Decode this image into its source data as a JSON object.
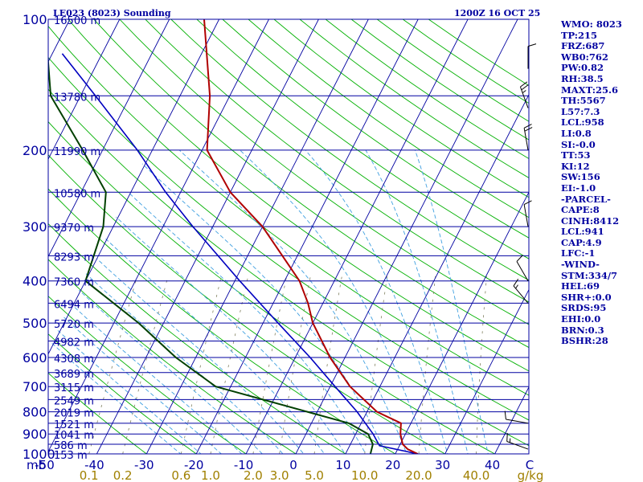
{
  "header": {
    "station": "LE023 (8023) Sounding",
    "time": "1200Z 16 OCT 25"
  },
  "colors": {
    "background": "#ffffff",
    "isobar": "#0000a0",
    "isotherm": "#0000a0",
    "dry_adiabat": "#00b000",
    "moist_adiabat": "#40a0e0",
    "mixing_ratio": "#808060",
    "temperature": "#b00000",
    "dewpoint": "#004000",
    "parcel": "#0000c0",
    "text": "#0000a0",
    "wind": "#000000",
    "mr_label": "#a08000"
  },
  "stats": [
    "WMO: 8023",
    "TP:215",
    "FRZ:687",
    "WB0:762",
    "PW:0.82",
    "RH:38.5",
    "MAXT:25.6",
    "TH:5567",
    "L57:7.3",
    "LCL:958",
    "LI:0.8",
    "SI:-0.0",
    "TT:53",
    "KI:12",
    "SW:156",
    "EI:-1.0",
    "-PARCEL-",
    "CAPE:8",
    "CINH:8412",
    "LCL:941",
    "CAP:4.9",
    "LFC:-1",
    "-WIND-",
    "STM:334/7",
    "HEL:69",
    "SHR+:0.0",
    "SRDS:95",
    "EHI:0.0",
    "BRN:0.3",
    "BSHR:28"
  ],
  "chart_data": {
    "type": "skew-t",
    "title": "LE023 (8023) Sounding",
    "time": "1200Z 16 OCT 25",
    "pressure_axis_unit": "mb",
    "temperature_axis_unit": "C",
    "mixing_ratio_unit": "g/kg",
    "pressure_range": [
      1000,
      100
    ],
    "temperature_range": [
      -50,
      50
    ],
    "pressure_ticks": [
      100,
      200,
      300,
      400,
      500,
      600,
      700,
      800,
      900,
      1000
    ],
    "temperature_ticks": [
      -50,
      -40,
      -30,
      -20,
      -10,
      0,
      10,
      20,
      30,
      40
    ],
    "mixing_ratio_labels": [
      "0.1",
      "0.2",
      "0.6",
      "1.0",
      "2.0",
      "3.0",
      "5.0",
      "10.0",
      "20.0",
      "40.0"
    ],
    "mixing_ratio_values": [
      0.1,
      0.2,
      0.6,
      1.0,
      2.0,
      3.0,
      5.0,
      10.0,
      20.0,
      40.0
    ],
    "heights": [
      {
        "p": 100,
        "label": "16500 m"
      },
      {
        "p": 150,
        "label": "13780 m"
      },
      {
        "p": 200,
        "label": "11990 m"
      },
      {
        "p": 250,
        "label": "10580 m"
      },
      {
        "p": 300,
        "label": "9370 m"
      },
      {
        "p": 350,
        "label": "8293 m"
      },
      {
        "p": 400,
        "label": "7360 m"
      },
      {
        "p": 450,
        "label": "6494 m"
      },
      {
        "p": 500,
        "label": "5720 m"
      },
      {
        "p": 550,
        "label": "4982 m"
      },
      {
        "p": 600,
        "label": "4308 m"
      },
      {
        "p": 650,
        "label": "3689 m"
      },
      {
        "p": 700,
        "label": "3115 m"
      },
      {
        "p": 750,
        "label": "2549 m"
      },
      {
        "p": 800,
        "label": "2019 m"
      },
      {
        "p": 850,
        "label": "1521 m"
      },
      {
        "p": 900,
        "label": "1041 m"
      },
      {
        "p": 950,
        "label": "586 m"
      },
      {
        "p": 1000,
        "label": "153 m"
      }
    ],
    "temperature_profile": [
      {
        "p": 1000,
        "t": 24.5
      },
      {
        "p": 975,
        "t": 22.0
      },
      {
        "p": 950,
        "t": 20.5
      },
      {
        "p": 900,
        "t": 19.0
      },
      {
        "p": 850,
        "t": 18.0
      },
      {
        "p": 800,
        "t": 12.0
      },
      {
        "p": 700,
        "t": 4.0
      },
      {
        "p": 600,
        "t": -3.0
      },
      {
        "p": 500,
        "t": -10.0
      },
      {
        "p": 450,
        "t": -13.0
      },
      {
        "p": 400,
        "t": -17.0
      },
      {
        "p": 300,
        "t": -30.0
      },
      {
        "p": 250,
        "t": -40.0
      },
      {
        "p": 200,
        "t": -49.0
      },
      {
        "p": 150,
        "t": -54.0
      },
      {
        "p": 100,
        "t": -63.0
      }
    ],
    "dewpoint_profile": [
      {
        "p": 1000,
        "t": 15.0
      },
      {
        "p": 950,
        "t": 14.5
      },
      {
        "p": 900,
        "t": 12.5
      },
      {
        "p": 850,
        "t": 7.5
      },
      {
        "p": 800,
        "t": -2.0
      },
      {
        "p": 700,
        "t": -23.0
      },
      {
        "p": 600,
        "t": -34.0
      },
      {
        "p": 500,
        "t": -45.0
      },
      {
        "p": 400,
        "t": -60.0
      },
      {
        "p": 300,
        "t": -62.0
      },
      {
        "p": 250,
        "t": -65.0
      },
      {
        "p": 200,
        "t": -74.0
      },
      {
        "p": 150,
        "t": -86.0
      },
      {
        "p": 100,
        "t": -95.0
      }
    ],
    "parcel_profile": [
      {
        "p": 1000,
        "t": 24.5
      },
      {
        "p": 958,
        "t": 16.0
      },
      {
        "p": 900,
        "t": 13.5
      },
      {
        "p": 800,
        "t": 8.0
      },
      {
        "p": 700,
        "t": 1.0
      },
      {
        "p": 600,
        "t": -7.0
      },
      {
        "p": 500,
        "t": -17.0
      },
      {
        "p": 400,
        "t": -29.0
      },
      {
        "p": 300,
        "t": -44.0
      },
      {
        "p": 250,
        "t": -53.0
      },
      {
        "p": 200,
        "t": -63.0
      },
      {
        "p": 150,
        "t": -77.0
      },
      {
        "p": 120,
        "t": -88.0
      }
    ],
    "wind_barbs": [
      {
        "p": 975,
        "dir": 290,
        "speed": 15
      },
      {
        "p": 850,
        "dir": 280,
        "speed": 10
      },
      {
        "p": 450,
        "dir": 320,
        "speed": 15
      },
      {
        "p": 400,
        "dir": 330,
        "speed": 10
      },
      {
        "p": 300,
        "dir": 350,
        "speed": 10
      },
      {
        "p": 200,
        "dir": 350,
        "speed": 20
      },
      {
        "p": 160,
        "dir": 340,
        "speed": 25
      },
      {
        "p": 130,
        "dir": 0,
        "speed": 10
      }
    ]
  }
}
